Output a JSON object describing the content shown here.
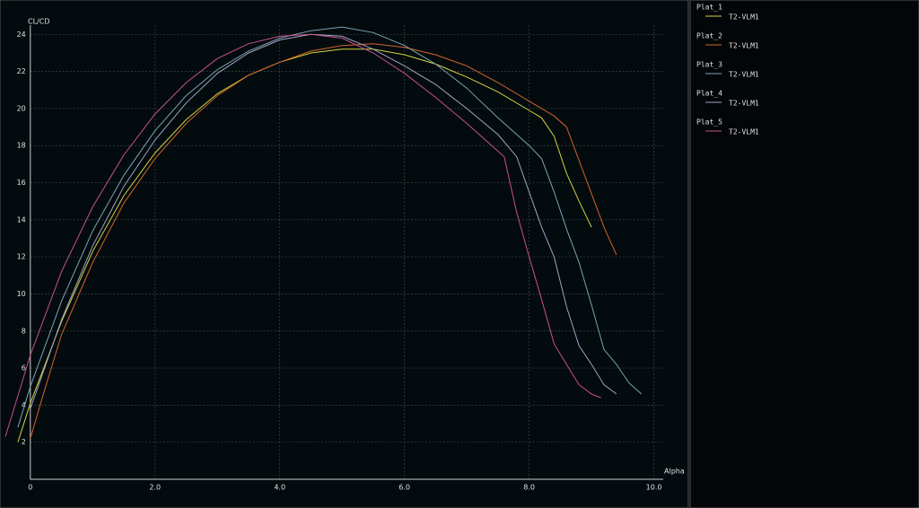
{
  "chart_data": {
    "type": "line",
    "x_label": "Alpha",
    "y_label": "CL/CD",
    "xlim": [
      -0.4,
      10.15
    ],
    "ylim": [
      0,
      24.5
    ],
    "xticks": [
      0,
      {
        "value": 2,
        "label": "2.0"
      },
      {
        "value": 4,
        "label": "4.0"
      },
      {
        "value": 6,
        "label": "6.0"
      },
      {
        "value": 8,
        "label": "8.0"
      },
      {
        "value": 10,
        "label": "10.0"
      }
    ],
    "yticks": [
      2,
      4,
      6,
      8,
      10,
      12,
      14,
      16,
      18,
      20,
      22,
      24
    ],
    "grid": true,
    "series": [
      {
        "name": "Plat_1",
        "polar": "T2-VLM1",
        "color": "#d2d23c",
        "x": [
          -0.2,
          0,
          0.5,
          1,
          1.5,
          2,
          2.5,
          3,
          3.5,
          4,
          4.5,
          5,
          5.5,
          6,
          6.5,
          7,
          7.5,
          8,
          8.2,
          8.4,
          8.6,
          8.8,
          9.0
        ],
        "values": [
          2,
          4.1,
          8.5,
          12.3,
          15.3,
          17.6,
          19.4,
          20.8,
          21.8,
          22.5,
          23,
          23.2,
          23.2,
          22.9,
          22.4,
          21.7,
          20.9,
          19.9,
          19.5,
          18.5,
          16.5,
          15,
          13.6
        ]
      },
      {
        "name": "Plat_2",
        "polar": "T2-VLM1",
        "color": "#d2642a",
        "x": [
          0,
          0.2,
          0.5,
          1,
          1.5,
          2,
          2.5,
          3,
          3.5,
          4,
          4.5,
          5,
          5.5,
          6,
          6.5,
          7,
          7.5,
          8,
          8.4,
          8.6,
          8.8,
          9.0,
          9.2,
          9.4
        ],
        "values": [
          2.2,
          4.5,
          7.8,
          11.7,
          14.9,
          17.3,
          19.2,
          20.7,
          21.8,
          22.5,
          23.1,
          23.4,
          23.5,
          23.3,
          22.9,
          22.3,
          21.4,
          20.4,
          19.6,
          19,
          17.2,
          15.4,
          13.6,
          12.1
        ]
      },
      {
        "name": "Plat_3",
        "polar": "T2-VLM1",
        "color": "#7aa4b4",
        "x": [
          -0.2,
          0,
          0.5,
          1,
          1.5,
          2,
          2.5,
          3,
          3.5,
          4,
          4.5,
          5,
          5.5,
          6,
          6.5,
          7,
          7.5,
          8,
          8.2,
          8.4,
          8.6,
          8.8,
          9,
          9.2,
          9.4,
          9.6,
          9.8
        ],
        "values": [
          2.8,
          5,
          9.6,
          13.4,
          16.4,
          18.8,
          20.7,
          22.1,
          23.1,
          23.8,
          24.2,
          24.4,
          24.1,
          23.4,
          22.4,
          21.1,
          19.5,
          18,
          17.3,
          15.5,
          13.5,
          11.7,
          9.4,
          7,
          6.2,
          5.2,
          4.6
        ]
      },
      {
        "name": "Plat_4",
        "polar": "T2-VLM1",
        "color": "#a0a4c0",
        "x": [
          0,
          0.5,
          1,
          1.5,
          2,
          2.5,
          3,
          3.5,
          4,
          4.5,
          5,
          5.5,
          6,
          6.5,
          7,
          7.5,
          7.8,
          8,
          8.2,
          8.4,
          8.6,
          8.8,
          9,
          9.2,
          9.4
        ],
        "values": [
          3.8,
          8.6,
          12.6,
          15.8,
          18.3,
          20.3,
          21.9,
          23,
          23.7,
          24,
          23.9,
          23.2,
          22.3,
          21.3,
          20,
          18.6,
          17.4,
          15.5,
          13.6,
          12,
          9.3,
          7.2,
          6.2,
          5.1,
          4.6
        ]
      },
      {
        "name": "Plat_5",
        "polar": "T2-VLM1",
        "color": "#c8508c",
        "x": [
          -0.4,
          0,
          0.5,
          1,
          1.5,
          2,
          2.5,
          3,
          3.5,
          4,
          4.5,
          5,
          5.5,
          6,
          6.5,
          7,
          7.6,
          7.8,
          8,
          8.2,
          8.4,
          8.6,
          8.8,
          9,
          9.15
        ],
        "values": [
          2.3,
          6.7,
          11.2,
          14.7,
          17.5,
          19.7,
          21.4,
          22.7,
          23.5,
          23.9,
          24,
          23.8,
          23,
          21.9,
          20.6,
          19.2,
          17.4,
          14.4,
          12,
          9.7,
          7.3,
          6.2,
          5.1,
          4.6,
          4.4
        ]
      }
    ]
  }
}
